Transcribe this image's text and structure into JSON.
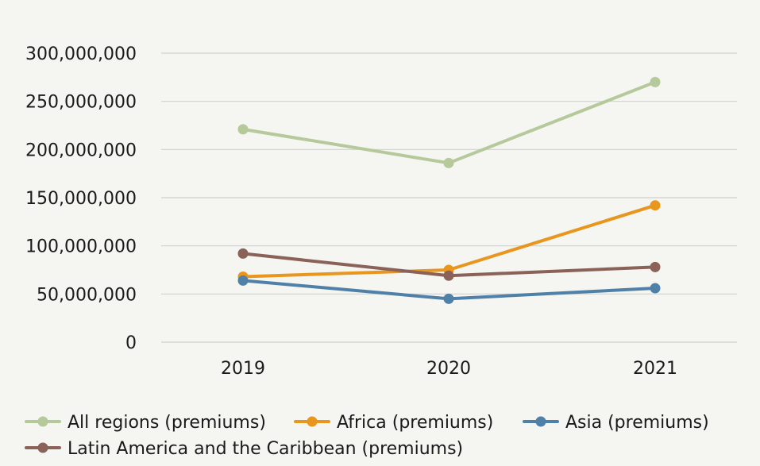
{
  "chart_data": {
    "type": "line",
    "categories": [
      "2019",
      "2020",
      "2021"
    ],
    "ylim": [
      0,
      300000000
    ],
    "yticks": [
      0,
      50000000,
      100000000,
      150000000,
      200000000,
      250000000,
      300000000
    ],
    "ytick_labels": [
      "0",
      "50,000,000",
      "100,000,000",
      "150,000,000",
      "200,000,000",
      "250,000,000",
      "300,000,000"
    ],
    "grid": true,
    "legend_position": "bottom",
    "series": [
      {
        "name": "All regions (premiums)",
        "color": "#b5c99a",
        "values": [
          221000000,
          186000000,
          270000000
        ]
      },
      {
        "name": "Africa (premiums)",
        "color": "#e8961e",
        "values": [
          68000000,
          75000000,
          142000000
        ]
      },
      {
        "name": "Asia (premiums)",
        "color": "#4f81a8",
        "values": [
          64000000,
          45000000,
          56000000
        ]
      },
      {
        "name": "Latin America and the Caribbean (premiums)",
        "color": "#8a6258",
        "values": [
          92000000,
          69000000,
          78000000
        ]
      }
    ]
  }
}
